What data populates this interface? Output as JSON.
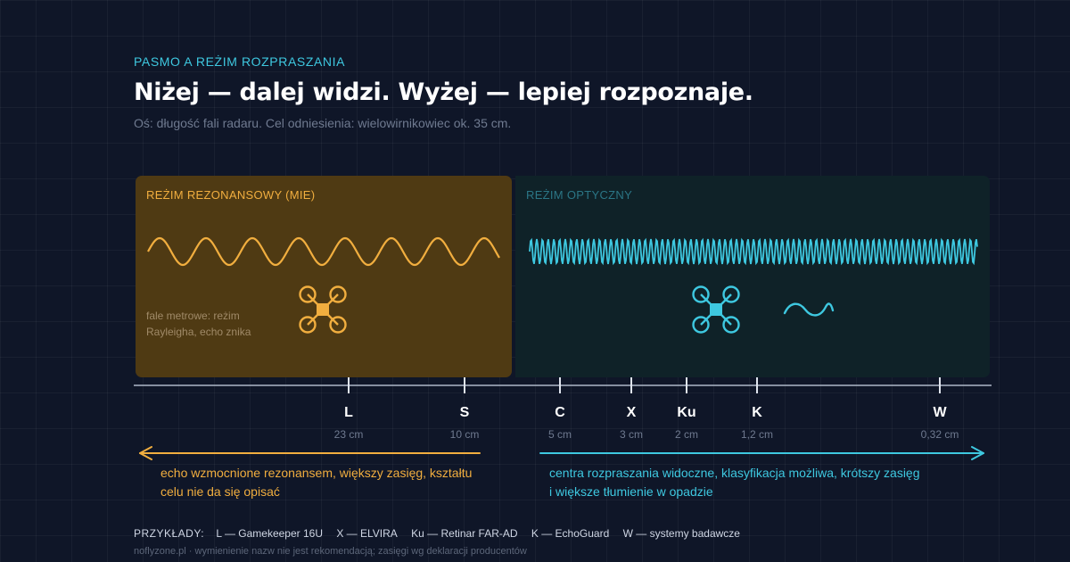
{
  "header": {
    "eyebrow": "PASMO A REŻIM ROZPRASZANIA",
    "title": "Niżej — dalej widzi. Wyżej — lepiej rozpoznaje.",
    "subtitle": "Oś: długość fali radaru. Cel odniesienia: wielowirnikowiec ok. 35 cm."
  },
  "regimes": {
    "resonant": {
      "label": "REŻIM REZONANSOWY (MIE)",
      "note": "fale metrowe: reżim Rayleigha, echo znika",
      "color": "#f1ae3f"
    },
    "optical": {
      "label": "REŻIM OPTYCZNY",
      "color": "#3ec8e0"
    }
  },
  "bands": [
    {
      "letter": "L",
      "wavelength": "23 cm"
    },
    {
      "letter": "S",
      "wavelength": "10 cm"
    },
    {
      "letter": "C",
      "wavelength": "5 cm"
    },
    {
      "letter": "X",
      "wavelength": "3 cm"
    },
    {
      "letter": "Ku",
      "wavelength": "2 cm"
    },
    {
      "letter": "K",
      "wavelength": "1,2 cm"
    },
    {
      "letter": "W",
      "wavelength": "0,32 cm"
    }
  ],
  "captions": {
    "left": "echo wzmocnione rezonansem, większy zasięg, kształtu celu nie da się opisać",
    "right": "centra rozpraszania widoczne, klasyfikacja możliwa, krótszy zasięg i większe tłumienie w opadzie"
  },
  "examples": {
    "label": "PRZYKŁADY:",
    "items": [
      "L — Gamekeeper 16U",
      "X — ELVIRA",
      "Ku — Retinar FAR-AD",
      "K — EchoGuard",
      "W — systemy badawcze"
    ]
  },
  "footer": {
    "site": "noflyzone.pl",
    "separator": "·",
    "disclaimer": "wymienienie nazw nie jest rekomendacją; zasięgi wg deklaracji producentów"
  },
  "icons": {
    "resonant_drone": "quadcopter-icon",
    "optical_drone": "quadcopter-icon",
    "small_wave": "wave-icon"
  }
}
